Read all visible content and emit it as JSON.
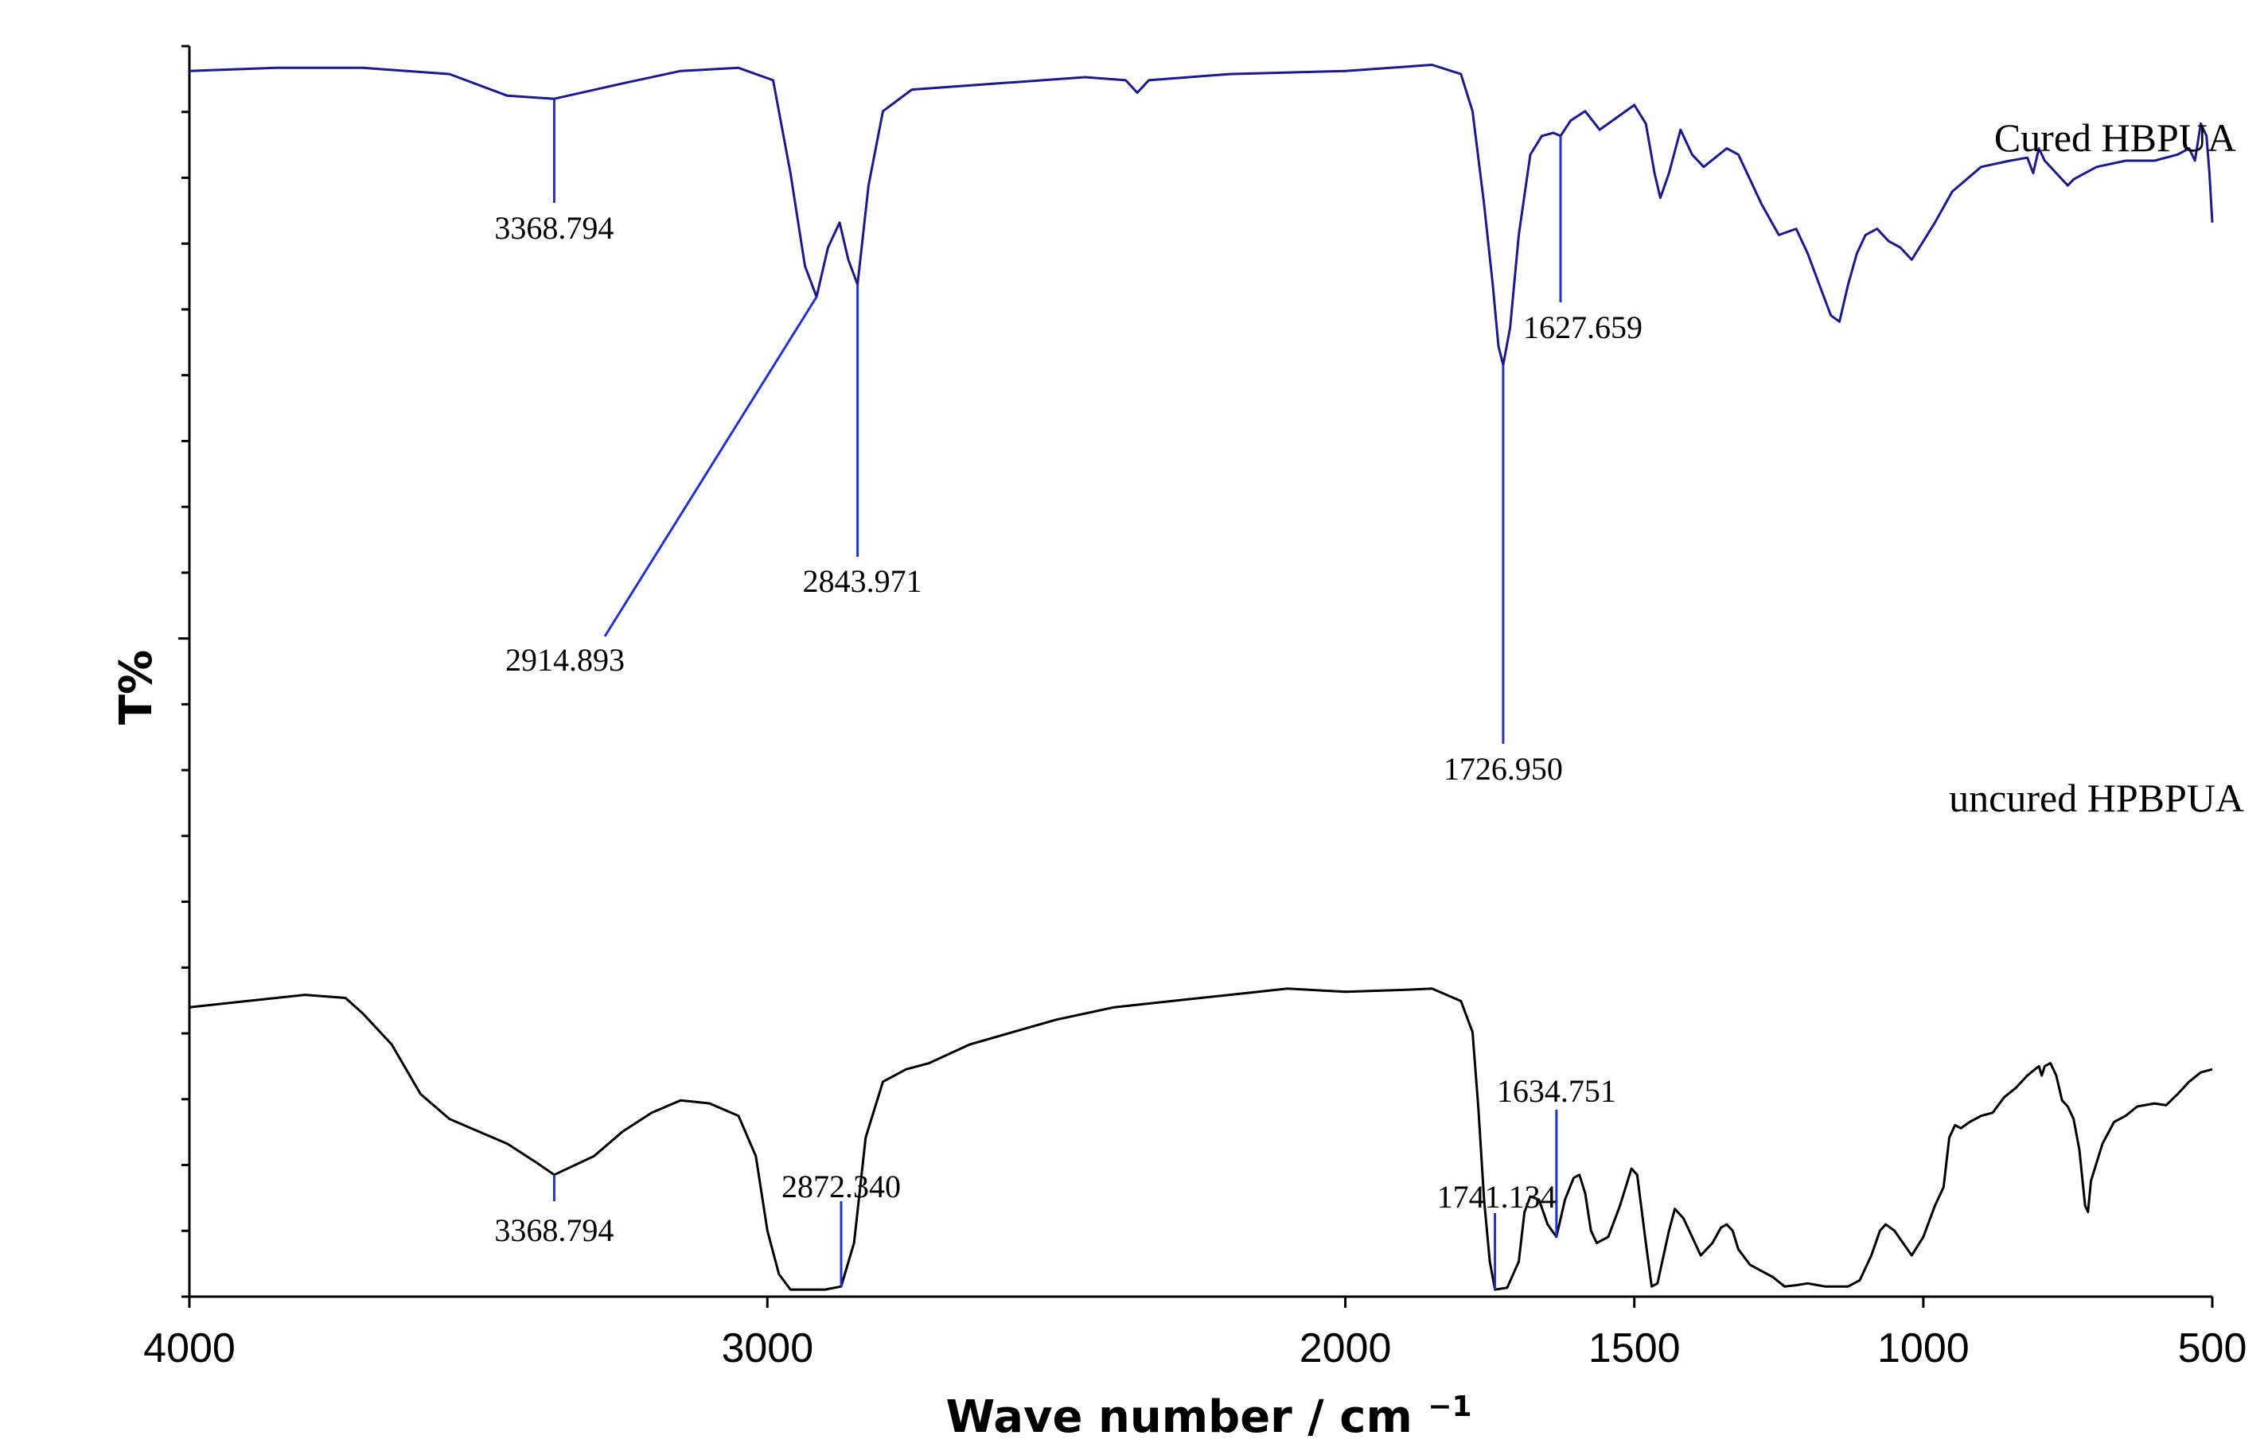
{
  "chart_data": {
    "type": "line",
    "title": "",
    "xlabel": "Wave number / cm",
    "xlabel_sup": "−1",
    "ylabel": "T%",
    "xlim": [
      4000,
      500
    ],
    "x_ticks": [
      "4000",
      "3000",
      "2000",
      "1500",
      "1000",
      "500"
    ],
    "x_tick_values": [
      4000,
      3000,
      2000,
      1500,
      1000,
      500
    ],
    "y_scale_labels": false,
    "grid": false,
    "colors": {
      "cured": "#1a1a8c",
      "uncured": "#000000",
      "marker": "#2233cc"
    },
    "series": [
      {
        "name": "Cured HBPUA",
        "color": "#1a1a8c",
        "points": [
          [
            4000,
            96.5
          ],
          [
            3850,
            97
          ],
          [
            3700,
            97
          ],
          [
            3550,
            96
          ],
          [
            3450,
            92.5
          ],
          [
            3368.794,
            92
          ],
          [
            3250,
            94.5
          ],
          [
            3150,
            96.5
          ],
          [
            3050,
            97
          ],
          [
            2990,
            95
          ],
          [
            2960,
            80
          ],
          [
            2935,
            65
          ],
          [
            2914.893,
            60
          ],
          [
            2895,
            68
          ],
          [
            2875,
            72
          ],
          [
            2860,
            66
          ],
          [
            2843.971,
            62
          ],
          [
            2825,
            78
          ],
          [
            2800,
            90
          ],
          [
            2750,
            93.5
          ],
          [
            2600,
            94.5
          ],
          [
            2450,
            95.5
          ],
          [
            2380,
            95
          ],
          [
            2360,
            93
          ],
          [
            2340,
            95
          ],
          [
            2200,
            96
          ],
          [
            2000,
            96.5
          ],
          [
            1850,
            97.5
          ],
          [
            1800,
            96
          ],
          [
            1780,
            90
          ],
          [
            1760,
            75
          ],
          [
            1745,
            62
          ],
          [
            1735,
            52
          ],
          [
            1726.95,
            49
          ],
          [
            1715,
            55
          ],
          [
            1700,
            70
          ],
          [
            1680,
            83
          ],
          [
            1660,
            86
          ],
          [
            1640,
            86.5
          ],
          [
            1627.659,
            86
          ],
          [
            1610,
            88.5
          ],
          [
            1585,
            90
          ],
          [
            1560,
            87
          ],
          [
            1530,
            89
          ],
          [
            1500,
            91
          ],
          [
            1480,
            88
          ],
          [
            1465,
            80
          ],
          [
            1455,
            76
          ],
          [
            1440,
            80
          ],
          [
            1420,
            87
          ],
          [
            1400,
            83
          ],
          [
            1380,
            81
          ],
          [
            1340,
            84
          ],
          [
            1320,
            83
          ],
          [
            1300,
            79
          ],
          [
            1280,
            75
          ],
          [
            1250,
            70
          ],
          [
            1220,
            71
          ],
          [
            1200,
            67
          ],
          [
            1180,
            62
          ],
          [
            1160,
            57
          ],
          [
            1145,
            56
          ],
          [
            1130,
            62
          ],
          [
            1115,
            67
          ],
          [
            1100,
            70
          ],
          [
            1080,
            71
          ],
          [
            1060,
            69
          ],
          [
            1040,
            68
          ],
          [
            1020,
            66
          ],
          [
            1000,
            69
          ],
          [
            980,
            72
          ],
          [
            950,
            77
          ],
          [
            900,
            81
          ],
          [
            850,
            82
          ],
          [
            820,
            82.5
          ],
          [
            810,
            80
          ],
          [
            800,
            84
          ],
          [
            790,
            82
          ],
          [
            770,
            80
          ],
          [
            750,
            78
          ],
          [
            740,
            79
          ],
          [
            720,
            80
          ],
          [
            700,
            81
          ],
          [
            650,
            82
          ],
          [
            600,
            82
          ],
          [
            560,
            83
          ],
          [
            540,
            84
          ],
          [
            530,
            82
          ],
          [
            520,
            88
          ],
          [
            510,
            86
          ],
          [
            505,
            80
          ],
          [
            500,
            72
          ]
        ]
      },
      {
        "name": "uncured HPBPUA",
        "color": "#000000",
        "points": [
          [
            4000,
            46
          ],
          [
            3900,
            47
          ],
          [
            3800,
            48
          ],
          [
            3730,
            47.5
          ],
          [
            3700,
            45
          ],
          [
            3650,
            40
          ],
          [
            3600,
            32
          ],
          [
            3550,
            28
          ],
          [
            3500,
            26
          ],
          [
            3450,
            24
          ],
          [
            3400,
            21
          ],
          [
            3368.794,
            19
          ],
          [
            3300,
            22
          ],
          [
            3250,
            26
          ],
          [
            3200,
            29
          ],
          [
            3150,
            31
          ],
          [
            3100,
            30.5
          ],
          [
            3050,
            28.5
          ],
          [
            3020,
            22
          ],
          [
            3000,
            10
          ],
          [
            2980,
            3
          ],
          [
            2960,
            0.5
          ],
          [
            2900,
            0.5
          ],
          [
            2872.34,
            1
          ],
          [
            2850,
            8
          ],
          [
            2830,
            25
          ],
          [
            2800,
            34
          ],
          [
            2760,
            36
          ],
          [
            2720,
            37
          ],
          [
            2650,
            40
          ],
          [
            2500,
            44
          ],
          [
            2400,
            46
          ],
          [
            2300,
            47
          ],
          [
            2200,
            48
          ],
          [
            2100,
            49
          ],
          [
            2000,
            48.5
          ],
          [
            1900,
            48.8
          ],
          [
            1850,
            49
          ],
          [
            1800,
            47
          ],
          [
            1780,
            42
          ],
          [
            1770,
            30
          ],
          [
            1760,
            15
          ],
          [
            1750,
            5
          ],
          [
            1741.134,
            0.5
          ],
          [
            1720,
            0.8
          ],
          [
            1700,
            5
          ],
          [
            1690,
            13
          ],
          [
            1680,
            15.5
          ],
          [
            1665,
            15
          ],
          [
            1650,
            11
          ],
          [
            1634.751,
            9
          ],
          [
            1620,
            15
          ],
          [
            1605,
            18.5
          ],
          [
            1595,
            19
          ],
          [
            1585,
            16
          ],
          [
            1575,
            10
          ],
          [
            1565,
            8
          ],
          [
            1545,
            9
          ],
          [
            1525,
            14
          ],
          [
            1505,
            20
          ],
          [
            1495,
            19
          ],
          [
            1480,
            8
          ],
          [
            1470,
            1
          ],
          [
            1460,
            1.5
          ],
          [
            1440,
            10
          ],
          [
            1430,
            13.5
          ],
          [
            1415,
            12
          ],
          [
            1400,
            9
          ],
          [
            1385,
            6
          ],
          [
            1365,
            8
          ],
          [
            1350,
            10.5
          ],
          [
            1340,
            11
          ],
          [
            1330,
            10
          ],
          [
            1320,
            7
          ],
          [
            1300,
            4.5
          ],
          [
            1280,
            3.5
          ],
          [
            1260,
            2.5
          ],
          [
            1240,
            1
          ],
          [
            1220,
            1.2
          ],
          [
            1200,
            1.5
          ],
          [
            1170,
            1
          ],
          [
            1130,
            1
          ],
          [
            1110,
            2
          ],
          [
            1090,
            6
          ],
          [
            1075,
            10
          ],
          [
            1065,
            11
          ],
          [
            1050,
            10
          ],
          [
            1035,
            8
          ],
          [
            1020,
            6
          ],
          [
            1000,
            9
          ],
          [
            980,
            14
          ],
          [
            965,
            17
          ],
          [
            955,
            25
          ],
          [
            945,
            27
          ],
          [
            935,
            26.5
          ],
          [
            920,
            27.5
          ],
          [
            900,
            28.5
          ],
          [
            880,
            29
          ],
          [
            860,
            31.5
          ],
          [
            840,
            33
          ],
          [
            820,
            35
          ],
          [
            800,
            36.5
          ],
          [
            795,
            35
          ],
          [
            790,
            36.5
          ],
          [
            780,
            37
          ],
          [
            770,
            35
          ],
          [
            760,
            31
          ],
          [
            750,
            30
          ],
          [
            740,
            28
          ],
          [
            730,
            23
          ],
          [
            720,
            14
          ],
          [
            715,
            13
          ],
          [
            710,
            18
          ],
          [
            690,
            24
          ],
          [
            670,
            27.5
          ],
          [
            650,
            28.5
          ],
          [
            630,
            30
          ],
          [
            600,
            30.5
          ],
          [
            580,
            30.2
          ],
          [
            560,
            32
          ],
          [
            540,
            34
          ],
          [
            520,
            35.5
          ],
          [
            500,
            36
          ]
        ]
      }
    ],
    "peak_labels": [
      {
        "series": "Cured HBPUA",
        "x": 3368.794,
        "text": "3368.794"
      },
      {
        "series": "Cured HBPUA",
        "x": 2914.893,
        "text": "2914.893"
      },
      {
        "series": "Cured HBPUA",
        "x": 2843.971,
        "text": "2843.971"
      },
      {
        "series": "Cured HBPUA",
        "x": 1726.95,
        "text": "1726.950"
      },
      {
        "series": "Cured HBPUA",
        "x": 1627.659,
        "text": "1627.659"
      },
      {
        "series": "uncured HPBPUA",
        "x": 3368.794,
        "text": "3368.794"
      },
      {
        "series": "uncured HPBPUA",
        "x": 2872.34,
        "text": "2872.340"
      },
      {
        "series": "uncured HPBPUA",
        "x": 1741.134,
        "text": "1741.134"
      },
      {
        "series": "uncured HPBPUA",
        "x": 1634.751,
        "text": "1634.751"
      }
    ]
  }
}
